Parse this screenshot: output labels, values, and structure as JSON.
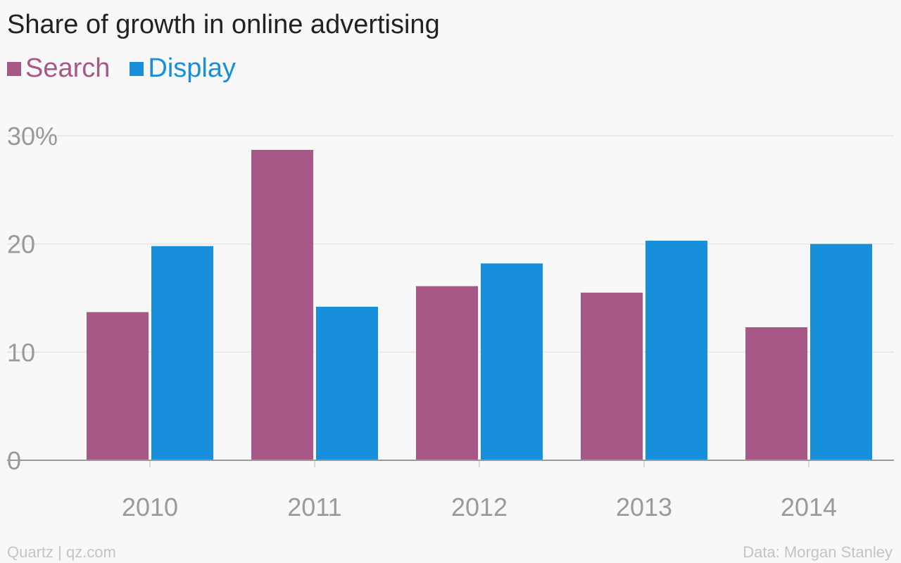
{
  "chart_data": {
    "type": "bar",
    "title": "Share of growth in online advertising",
    "categories": [
      "2010",
      "2011",
      "2012",
      "2013",
      "2014"
    ],
    "series": [
      {
        "name": "Search",
        "color": "#a85886",
        "values": [
          13.7,
          28.7,
          16.1,
          15.5,
          12.3
        ]
      },
      {
        "name": "Display",
        "color": "#178fdb",
        "values": [
          19.8,
          14.2,
          18.2,
          20.3,
          20.0
        ]
      }
    ],
    "yticks": [
      "0",
      "10",
      "20",
      "30%"
    ],
    "ylim": [
      0,
      30
    ],
    "grid": true,
    "legend_position": "top-left"
  },
  "footer": {
    "source_left": "Quartz | qz.com",
    "source_right": "Data: Morgan Stanley"
  }
}
